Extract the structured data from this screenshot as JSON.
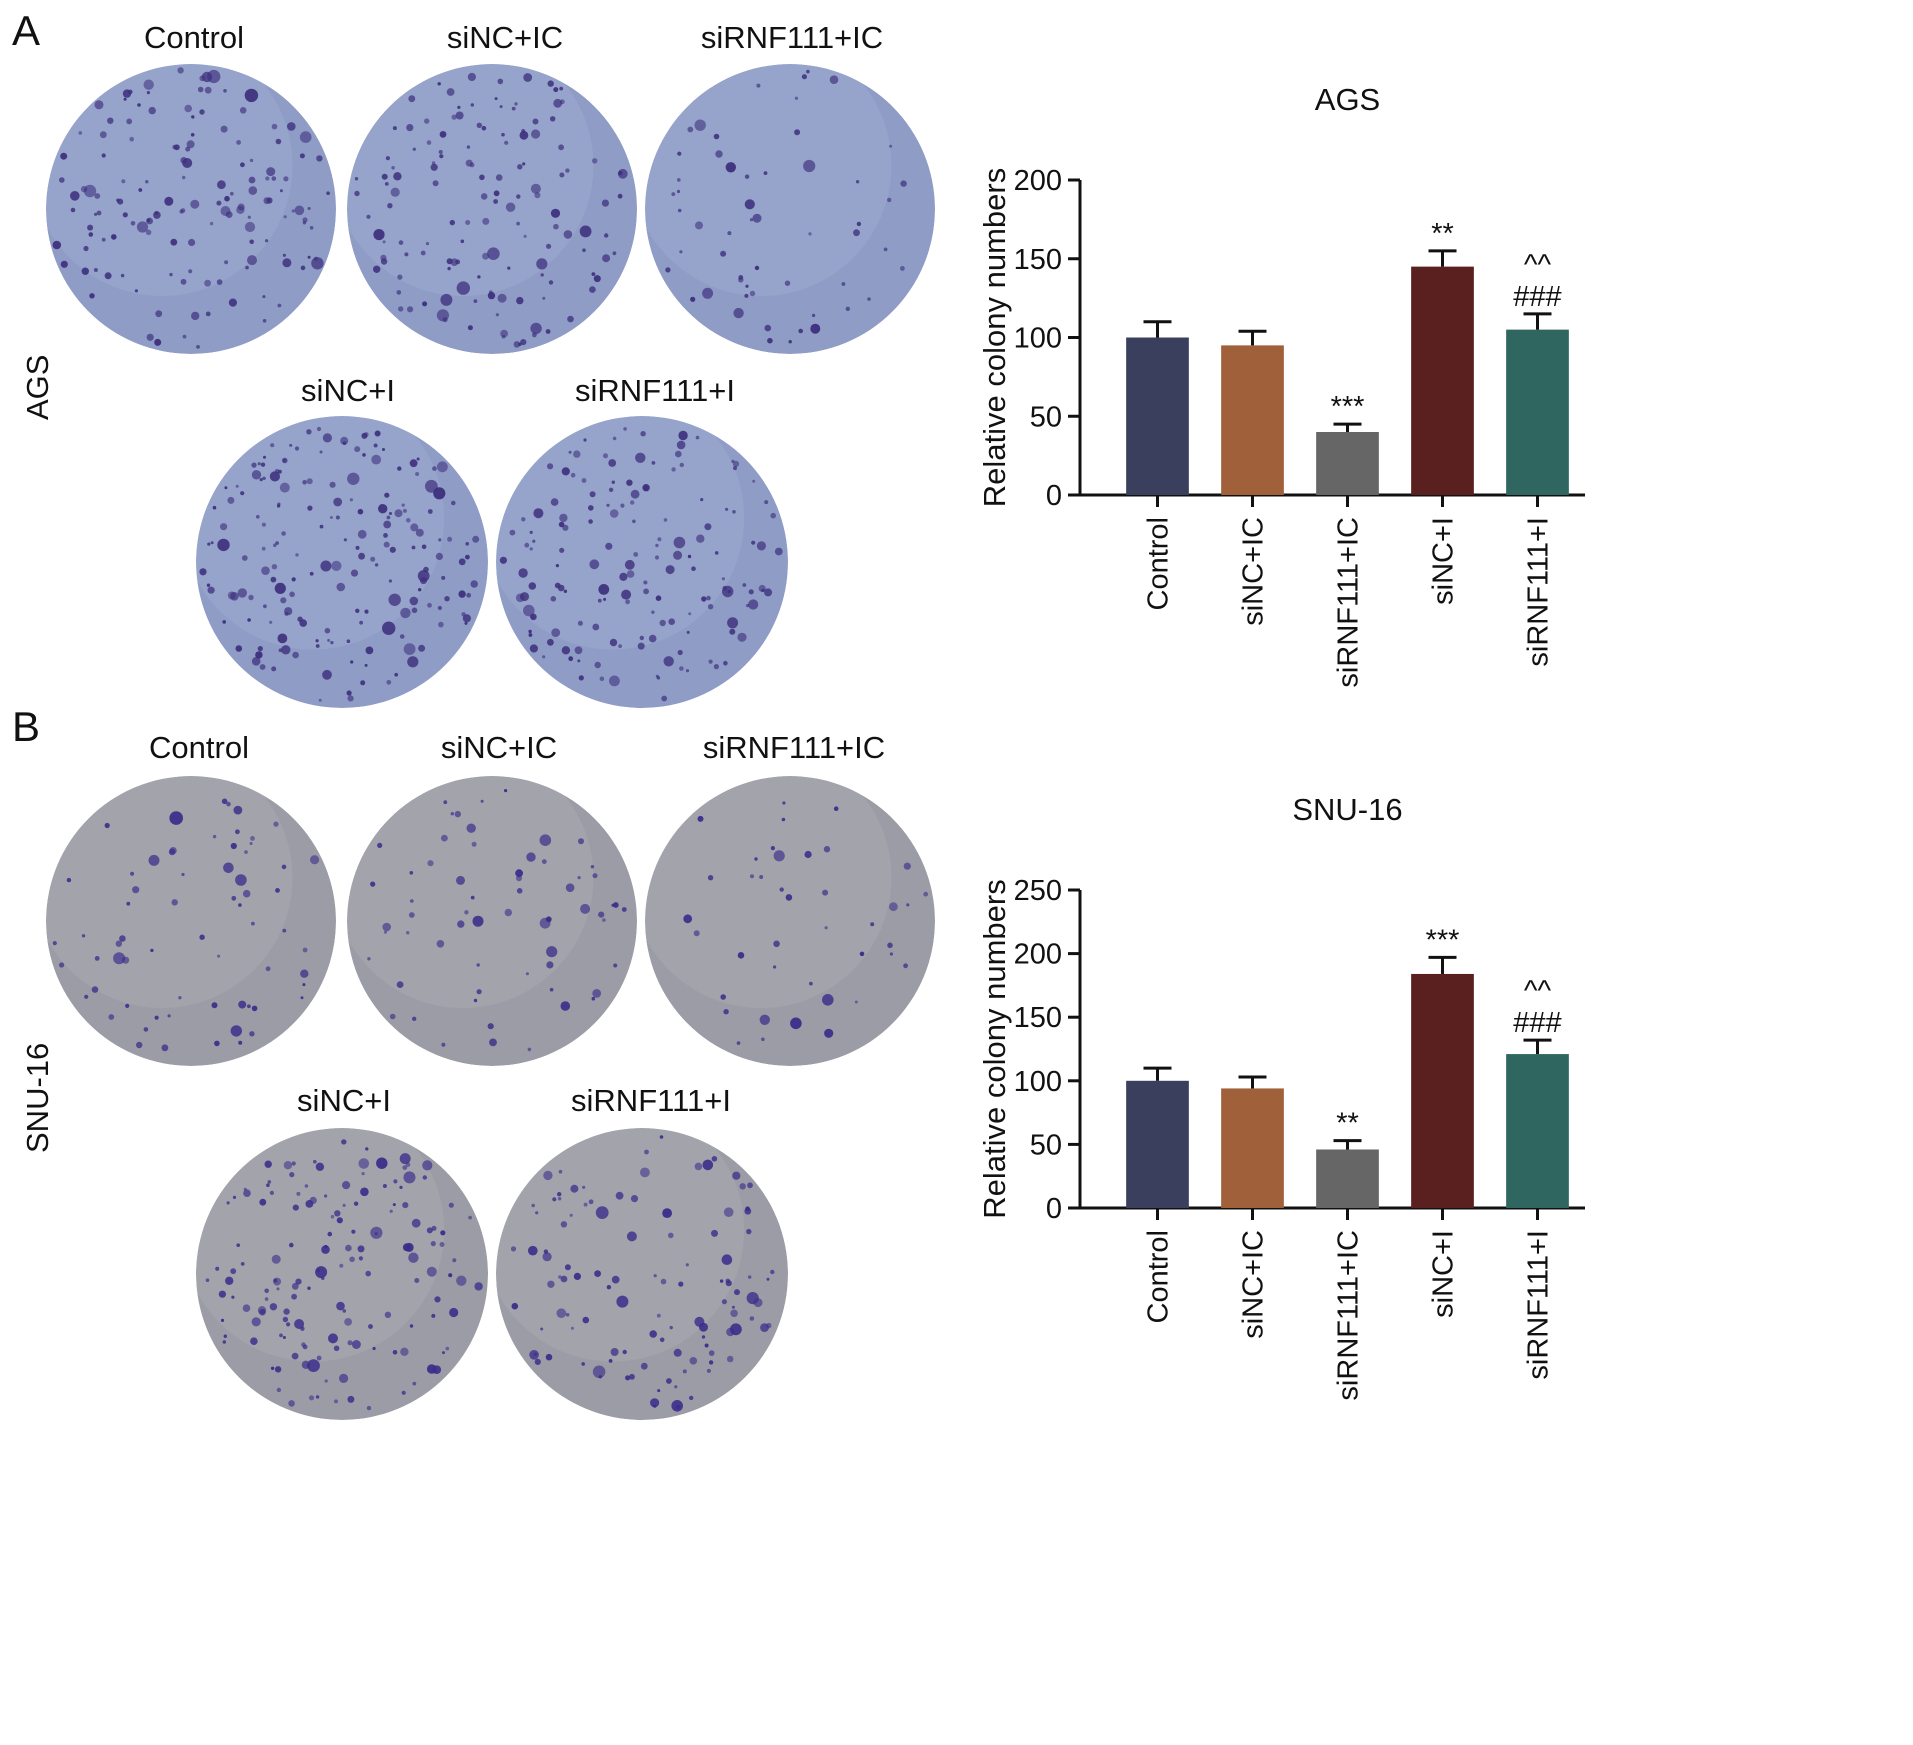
{
  "panels": [
    {
      "letter": "A",
      "cell_line": "AGS",
      "wells": [
        {
          "label": "Control",
          "colonies": 140
        },
        {
          "label": "siNC+IC",
          "colonies": 135
        },
        {
          "label": "siRNF111+IC",
          "colonies": 55
        },
        {
          "label": "siNC+I",
          "colonies": 180
        },
        {
          "label": "siRNF111+I",
          "colonies": 150
        }
      ],
      "well_color": "#8f9cc6",
      "colony_color": "#3d2f7d"
    },
    {
      "letter": "B",
      "cell_line": "SNU-16",
      "wells": [
        {
          "label": "Control",
          "colonies": 65
        },
        {
          "label": "siNC+IC",
          "colonies": 62
        },
        {
          "label": "siRNF111+IC",
          "colonies": 40
        },
        {
          "label": "siNC+I",
          "colonies": 150
        },
        {
          "label": "siRNF111+I",
          "colonies": 110
        }
      ],
      "well_color": "#9c9ca6",
      "colony_color": "#3b2c8a"
    }
  ],
  "chart_data": [
    {
      "type": "bar",
      "title": "AGS",
      "ylabel": "Relative colony numbers",
      "xlabel": "",
      "categories": [
        "Control",
        "siNC+IC",
        "siRNF111+IC",
        "siNC+I",
        "siRNF111+I"
      ],
      "values": [
        100,
        95,
        40,
        145,
        105
      ],
      "errors": [
        10,
        9,
        5,
        10,
        10
      ],
      "annotations": [
        "",
        "",
        "***",
        "**",
        "^^\n###"
      ],
      "ylim": [
        0,
        200
      ],
      "yticks": [
        "0",
        "50",
        "100",
        "150",
        "200"
      ],
      "colors": [
        "#3b3f5e",
        "#a0603a",
        "#666666",
        "#5a1f1f",
        "#2f6660"
      ],
      "grid": false
    },
    {
      "type": "bar",
      "title": "SNU-16",
      "ylabel": "Relative colony numbers",
      "xlabel": "",
      "categories": [
        "Control",
        "siNC+IC",
        "siRNF111+IC",
        "siNC+I",
        "siRNF111+I"
      ],
      "values": [
        100,
        94,
        46,
        184,
        121
      ],
      "errors": [
        10,
        9,
        7,
        13,
        11
      ],
      "annotations": [
        "",
        "",
        "**",
        "***",
        "^^\n###"
      ],
      "ylim": [
        0,
        250
      ],
      "yticks": [
        "0",
        "50",
        "100",
        "150",
        "200",
        "250"
      ],
      "colors": [
        "#3b3f5e",
        "#a0603a",
        "#666666",
        "#5a1f1f",
        "#2f6660"
      ],
      "grid": false
    }
  ]
}
